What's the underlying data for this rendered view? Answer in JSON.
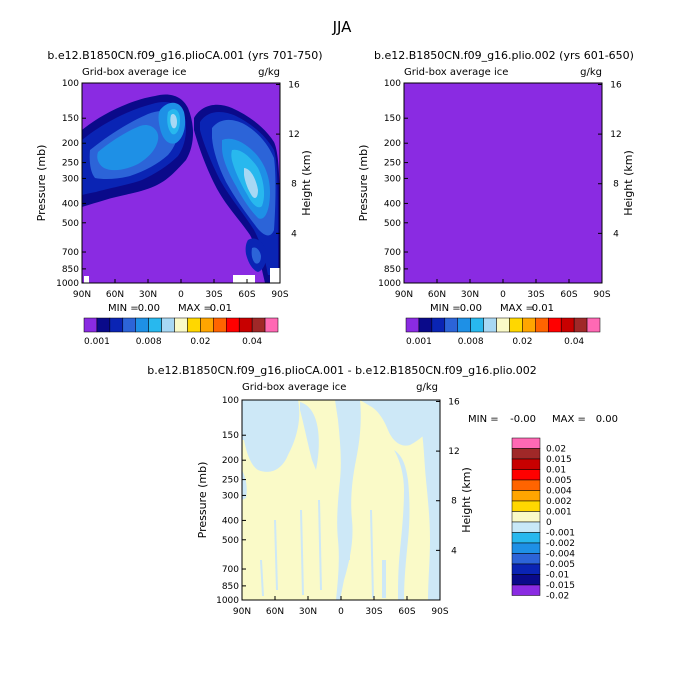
{
  "figure": {
    "season": "JJA",
    "panel_left": {
      "case": "b.e12.B1850CN.f09_g16.plioCA.001",
      "years": "(yrs 701-750)",
      "title": "b.e12.B1850CN.f09_g16.plioCA.001 (yrs 701-750)",
      "variable": "Grid-box average ice",
      "units": "g/kg",
      "min_label": "MIN =",
      "min_value": "0.00",
      "max_label": "MAX =",
      "max_value": "0.01"
    },
    "panel_right": {
      "case": "b.e12.B1850CN.f09_g16.plio.002",
      "years": "(yrs 601-650)",
      "title": "b.e12.B1850CN.f09_g16.plio.002 (yrs 601-650)",
      "variable": "Grid-box average ice",
      "units": "g/kg",
      "min_label": "MIN =",
      "min_value": "0.00",
      "max_label": "MAX =",
      "max_value": "0.01"
    },
    "panel_diff": {
      "title": "b.e12.B1850CN.f09_g16.plioCA.001 - b.e12.B1850CN.f09_g16.plio.002",
      "variable": "Grid-box average ice",
      "units": "g/kg",
      "min_label": "MIN =",
      "min_value": "-0.00",
      "max_label": "MAX =",
      "max_value": "0.00"
    }
  },
  "chart_data": [
    {
      "type": "heatmap",
      "title": "b.e12.B1850CN.f09_g16.plioCA.001 (yrs 701-750)",
      "subtitle": "Grid-box average ice",
      "units": "g/kg",
      "xlabel": "",
      "ylabel": "Pressure (mb)",
      "ylabel_right": "Height (km)",
      "x_ticks": [
        "90N",
        "60N",
        "30N",
        "0",
        "30S",
        "60S",
        "90S"
      ],
      "y_ticks": [
        100,
        150,
        200,
        250,
        300,
        400,
        500,
        700,
        850,
        1000
      ],
      "y_ticks_right": [
        16,
        12,
        8,
        4
      ],
      "ylim": [
        1000,
        100
      ],
      "min": 0.0,
      "max": 0.01,
      "colorbar_levels": [
        "0.001",
        "0.008",
        "0.02",
        "0.04"
      ]
    },
    {
      "type": "heatmap",
      "title": "b.e12.B1850CN.f09_g16.plio.002 (yrs 601-650)",
      "subtitle": "Grid-box average ice",
      "units": "g/kg",
      "xlabel": "",
      "ylabel": "Pressure (mb)",
      "ylabel_right": "Height (km)",
      "x_ticks": [
        "90N",
        "60N",
        "30N",
        "0",
        "30S",
        "60S",
        "90S"
      ],
      "y_ticks": [
        100,
        150,
        200,
        250,
        300,
        400,
        500,
        700,
        850,
        1000
      ],
      "y_ticks_right": [
        16,
        12,
        8,
        4
      ],
      "ylim": [
        1000,
        100
      ],
      "min": 0.0,
      "max": 0.01,
      "colorbar_levels": [
        "0.001",
        "0.008",
        "0.02",
        "0.04"
      ]
    },
    {
      "type": "heatmap",
      "title": "b.e12.B1850CN.f09_g16.plioCA.001 - b.e12.B1850CN.f09_g16.plio.002",
      "subtitle": "Grid-box average ice",
      "units": "g/kg",
      "xlabel": "",
      "ylabel": "Pressure (mb)",
      "ylabel_right": "Height (km)",
      "x_ticks": [
        "90N",
        "60N",
        "30N",
        "0",
        "30S",
        "60S",
        "90S"
      ],
      "y_ticks": [
        100,
        150,
        200,
        250,
        300,
        400,
        500,
        700,
        850,
        1000
      ],
      "y_ticks_right": [
        16,
        12,
        8,
        4
      ],
      "ylim": [
        1000,
        100
      ],
      "min": -0.0,
      "max": 0.0,
      "colorbar_levels": [
        "0.02",
        "0.015",
        "0.01",
        "0.005",
        "0.004",
        "0.002",
        "0.001",
        "0",
        "-0.001",
        "-0.002",
        "-0.004",
        "-0.005",
        "-0.01",
        "-0.015",
        "-0.02"
      ]
    }
  ],
  "colors": {
    "abs_scale": [
      "#8a2be2",
      "#0a0a8a",
      "#0a24b4",
      "#2c64d8",
      "#1e90e6",
      "#28b8ee",
      "#a8d8f4",
      "#fafac8",
      "#ffd700",
      "#ffa500",
      "#ff6400",
      "#ff0000",
      "#c80000",
      "#a02828",
      "#ff69b4"
    ],
    "diff_scale": [
      "#ff69b4",
      "#a02828",
      "#c80000",
      "#ff0000",
      "#ff6400",
      "#ffa500",
      "#ffd700",
      "#fafac8",
      "#c8e8f8",
      "#28b8ee",
      "#1e90e6",
      "#2c64d8",
      "#0a24b4",
      "#0a0a8a",
      "#8a2be2"
    ],
    "background_purple": "#8a2be2",
    "diff_light_yellow": "#fafac8",
    "diff_light_blue": "#cde8f7"
  }
}
